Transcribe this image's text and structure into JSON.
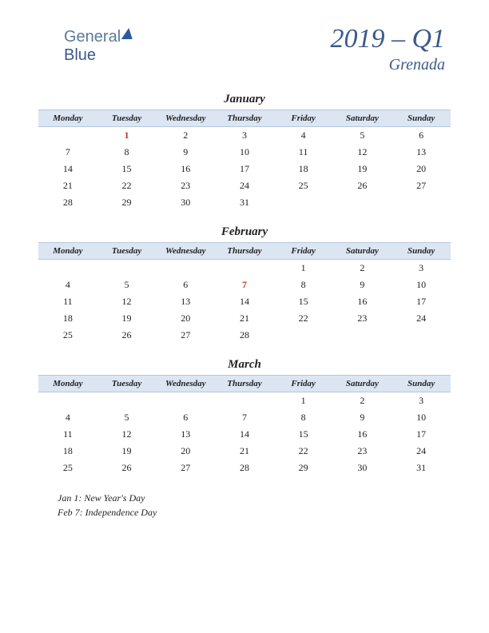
{
  "logo": {
    "part1": "General",
    "part2": "Blue"
  },
  "header": {
    "quarter": "2019 – Q1",
    "country": "Grenada"
  },
  "dayHeaders": [
    "Monday",
    "Tuesday",
    "Wednesday",
    "Thursday",
    "Friday",
    "Saturday",
    "Sunday"
  ],
  "months": [
    {
      "name": "January",
      "weeks": [
        [
          "",
          "1",
          "2",
          "3",
          "4",
          "5",
          "6"
        ],
        [
          "7",
          "8",
          "9",
          "10",
          "11",
          "12",
          "13"
        ],
        [
          "14",
          "15",
          "16",
          "17",
          "18",
          "19",
          "20"
        ],
        [
          "21",
          "22",
          "23",
          "24",
          "25",
          "26",
          "27"
        ],
        [
          "28",
          "29",
          "30",
          "31",
          "",
          "",
          ""
        ]
      ],
      "holidayDays": [
        "1"
      ]
    },
    {
      "name": "February",
      "weeks": [
        [
          "",
          "",
          "",
          "",
          "1",
          "2",
          "3"
        ],
        [
          "4",
          "5",
          "6",
          "7",
          "8",
          "9",
          "10"
        ],
        [
          "11",
          "12",
          "13",
          "14",
          "15",
          "16",
          "17"
        ],
        [
          "18",
          "19",
          "20",
          "21",
          "22",
          "23",
          "24"
        ],
        [
          "25",
          "26",
          "27",
          "28",
          "",
          "",
          ""
        ]
      ],
      "holidayDays": [
        "7"
      ]
    },
    {
      "name": "March",
      "weeks": [
        [
          "",
          "",
          "",
          "",
          "1",
          "2",
          "3"
        ],
        [
          "4",
          "5",
          "6",
          "7",
          "8",
          "9",
          "10"
        ],
        [
          "11",
          "12",
          "13",
          "14",
          "15",
          "16",
          "17"
        ],
        [
          "18",
          "19",
          "20",
          "21",
          "22",
          "23",
          "24"
        ],
        [
          "25",
          "26",
          "27",
          "28",
          "29",
          "30",
          "31"
        ]
      ],
      "holidayDays": []
    }
  ],
  "holidayList": [
    "Jan 1: New Year's Day",
    "Feb 7: Independence Day"
  ],
  "colors": {
    "headerBg": "#dce5f2",
    "headerBorder": "#b8c8dc",
    "titleColor": "#3a5a8a",
    "holidayColor": "#c03030",
    "textColor": "#222222",
    "background": "#ffffff"
  },
  "typography": {
    "quarterFontSize": 34,
    "countryFontSize": 20,
    "monthNameFontSize": 15,
    "dayHeaderFontSize": 11,
    "cellFontSize": 12,
    "holidayListFontSize": 12,
    "fontFamily": "Georgia, serif",
    "style": "italic"
  },
  "layout": {
    "pageWidth": 612,
    "pageHeight": 792,
    "columns": 7
  }
}
